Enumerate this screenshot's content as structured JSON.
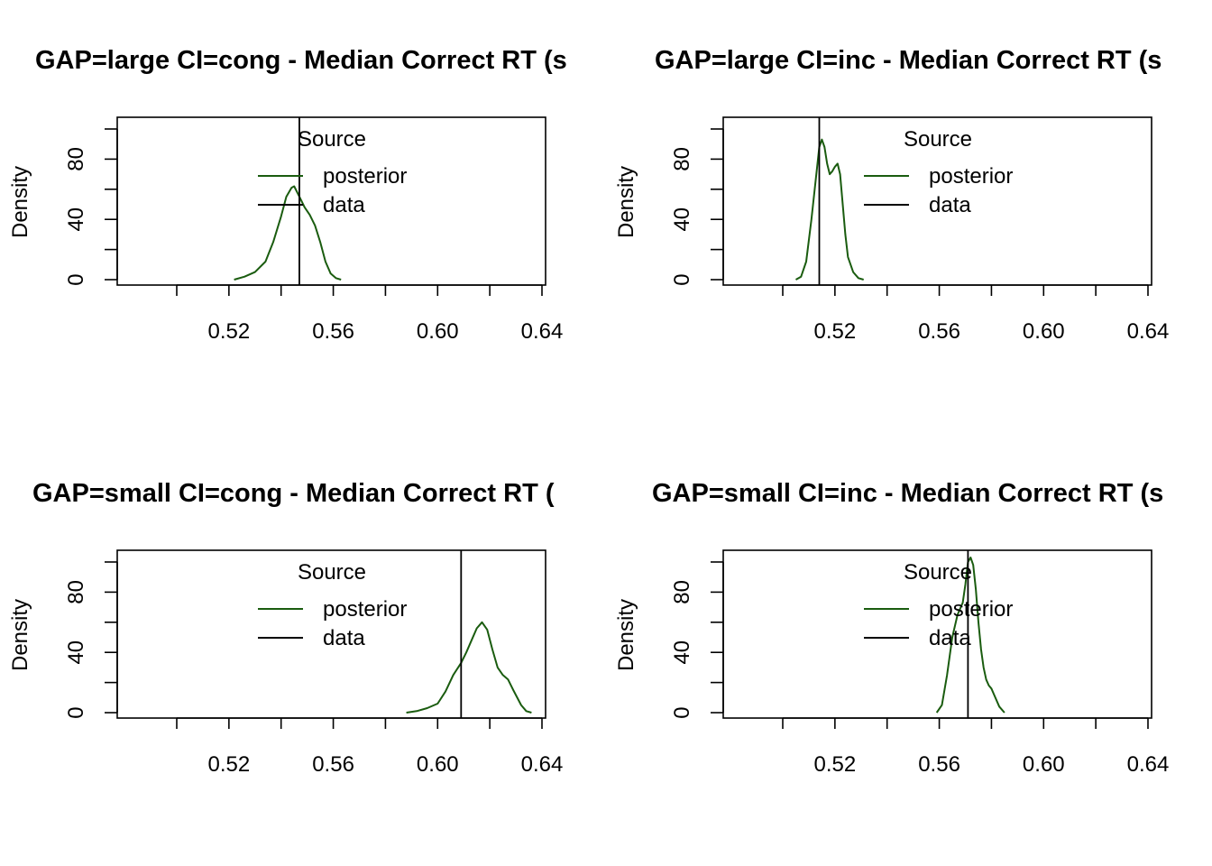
{
  "colors": {
    "posterior": "#1a5c0f",
    "data": "#000000",
    "axis": "#000000"
  },
  "chart_data": [
    {
      "type": "line",
      "title": "GAP=large CI=cong - Median Correct RT (s",
      "xlabel": "",
      "ylabel": "Density",
      "xlim": [
        0.5,
        0.64
      ],
      "ylim": [
        -4,
        107
      ],
      "x_ticks": [
        0.5,
        0.52,
        0.54,
        0.56,
        0.58,
        0.6,
        0.62,
        0.64
      ],
      "x_tick_labels": [
        "0.52",
        "0.56",
        "0.60",
        "0.64"
      ],
      "x_tick_label_values": [
        0.52,
        0.56,
        0.6,
        0.64
      ],
      "y_ticks": [
        0,
        20,
        40,
        60,
        80,
        100
      ],
      "y_tick_labels": [
        "0",
        "40",
        "80"
      ],
      "y_tick_label_values": [
        0,
        40,
        80
      ],
      "legend": {
        "title": "Source",
        "position": "top-center",
        "entries": [
          "posterior",
          "data"
        ]
      },
      "series": [
        {
          "name": "posterior",
          "x": [
            0.522,
            0.526,
            0.53,
            0.534,
            0.537,
            0.54,
            0.542,
            0.544,
            0.545,
            0.547,
            0.549,
            0.551,
            0.553,
            0.555,
            0.557,
            0.559,
            0.561,
            0.563
          ],
          "y": [
            0,
            2,
            5,
            12,
            25,
            42,
            55,
            61,
            62,
            55,
            48,
            43,
            36,
            25,
            12,
            4,
            1,
            0
          ]
        }
      ],
      "data_line_x": 0.547
    },
    {
      "type": "line",
      "title": "GAP=large CI=inc - Median Correct RT (s",
      "xlabel": "",
      "ylabel": "Density",
      "xlim": [
        0.5,
        0.64
      ],
      "ylim": [
        -4,
        107
      ],
      "x_ticks": [
        0.5,
        0.52,
        0.54,
        0.56,
        0.58,
        0.6,
        0.62,
        0.64
      ],
      "x_tick_labels": [
        "0.52",
        "0.56",
        "0.60",
        "0.64"
      ],
      "x_tick_label_values": [
        0.52,
        0.56,
        0.6,
        0.64
      ],
      "y_ticks": [
        0,
        20,
        40,
        60,
        80,
        100
      ],
      "y_tick_labels": [
        "0",
        "40",
        "80"
      ],
      "y_tick_label_values": [
        0,
        40,
        80
      ],
      "legend": {
        "title": "Source",
        "position": "top-center",
        "entries": [
          "posterior",
          "data"
        ]
      },
      "series": [
        {
          "name": "posterior",
          "x": [
            0.505,
            0.507,
            0.509,
            0.511,
            0.513,
            0.514,
            0.515,
            0.516,
            0.517,
            0.518,
            0.519,
            0.52,
            0.521,
            0.522,
            0.523,
            0.524,
            0.525,
            0.527,
            0.529,
            0.531
          ],
          "y": [
            0,
            2,
            12,
            40,
            72,
            88,
            93,
            88,
            77,
            70,
            72,
            75,
            77,
            70,
            50,
            30,
            15,
            5,
            1,
            0
          ]
        }
      ],
      "data_line_x": 0.514
    },
    {
      "type": "line",
      "title": "GAP=small CI=cong - Median Correct RT (",
      "xlabel": "",
      "ylabel": "Density",
      "xlim": [
        0.5,
        0.64
      ],
      "ylim": [
        -4,
        107
      ],
      "x_ticks": [
        0.5,
        0.52,
        0.54,
        0.56,
        0.58,
        0.6,
        0.62,
        0.64
      ],
      "x_tick_labels": [
        "0.52",
        "0.56",
        "0.60",
        "0.64"
      ],
      "x_tick_label_values": [
        0.52,
        0.56,
        0.6,
        0.64
      ],
      "y_ticks": [
        0,
        20,
        40,
        60,
        80,
        100
      ],
      "y_tick_labels": [
        "0",
        "40",
        "80"
      ],
      "y_tick_label_values": [
        0,
        40,
        80
      ],
      "legend": {
        "title": "Source",
        "position": "top-center",
        "entries": [
          "posterior",
          "data"
        ]
      },
      "series": [
        {
          "name": "posterior",
          "x": [
            0.588,
            0.592,
            0.596,
            0.6,
            0.603,
            0.606,
            0.609,
            0.611,
            0.613,
            0.615,
            0.617,
            0.619,
            0.621,
            0.623,
            0.625,
            0.627,
            0.629,
            0.632,
            0.634,
            0.636
          ],
          "y": [
            0,
            1,
            3,
            6,
            14,
            25,
            33,
            40,
            48,
            56,
            60,
            55,
            42,
            30,
            25,
            22,
            15,
            5,
            1,
            0
          ]
        }
      ],
      "data_line_x": 0.609
    },
    {
      "type": "line",
      "title": "GAP=small CI=inc - Median Correct RT (s",
      "xlabel": "",
      "ylabel": "Density",
      "xlim": [
        0.5,
        0.64
      ],
      "ylim": [
        -4,
        107
      ],
      "x_ticks": [
        0.5,
        0.52,
        0.54,
        0.56,
        0.58,
        0.6,
        0.62,
        0.64
      ],
      "x_tick_labels": [
        "0.52",
        "0.56",
        "0.60",
        "0.64"
      ],
      "x_tick_label_values": [
        0.52,
        0.56,
        0.6,
        0.64
      ],
      "y_ticks": [
        0,
        20,
        40,
        60,
        80,
        100
      ],
      "y_tick_labels": [
        "0",
        "40",
        "80"
      ],
      "y_tick_label_values": [
        0,
        40,
        80
      ],
      "legend": {
        "title": "Source",
        "position": "top-center",
        "entries": [
          "posterior",
          "data"
        ]
      },
      "series": [
        {
          "name": "posterior",
          "x": [
            0.559,
            0.561,
            0.563,
            0.565,
            0.567,
            0.569,
            0.57,
            0.571,
            0.572,
            0.573,
            0.574,
            0.575,
            0.576,
            0.577,
            0.578,
            0.579,
            0.58,
            0.581,
            0.583,
            0.585
          ],
          "y": [
            0,
            5,
            25,
            50,
            65,
            73,
            85,
            100,
            103,
            98,
            82,
            60,
            42,
            30,
            22,
            18,
            16,
            12,
            4,
            0
          ]
        }
      ],
      "data_line_x": 0.571
    }
  ]
}
